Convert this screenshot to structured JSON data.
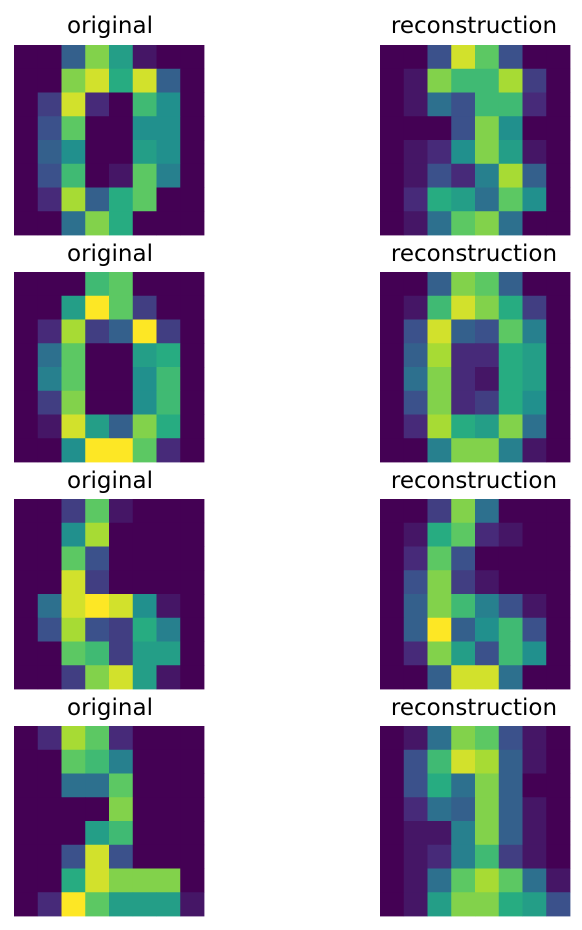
{
  "chart_data": {
    "type": "heatmap",
    "colormap": "viridis",
    "value_range": [
      0,
      16
    ],
    "grid": false,
    "axes_visible": false,
    "rows": [
      {
        "original": {
          "title": "original",
          "values": [
            [
              0,
              0,
              5,
              13,
              9,
              1,
              0,
              0
            ],
            [
              0,
              0,
              13,
              15,
              10,
              15,
              5,
              0
            ],
            [
              0,
              3,
              15,
              2,
              0,
              11,
              8,
              0
            ],
            [
              0,
              4,
              12,
              0,
              0,
              8,
              8,
              0
            ],
            [
              0,
              5,
              8,
              0,
              0,
              9,
              8,
              0
            ],
            [
              0,
              4,
              11,
              0,
              1,
              12,
              7,
              0
            ],
            [
              0,
              2,
              14,
              5,
              10,
              12,
              0,
              0
            ],
            [
              0,
              0,
              6,
              13,
              10,
              0,
              0,
              0
            ]
          ]
        },
        "reconstruction": {
          "title": "reconstruction",
          "values": [
            [
              0,
              0,
              4,
              15,
              12,
              4,
              0,
              0
            ],
            [
              0,
              1,
              13,
              11,
              11,
              14,
              3,
              0
            ],
            [
              0,
              1,
              6,
              4,
              11,
              11,
              2,
              0
            ],
            [
              0,
              0,
              0,
              4,
              13,
              8,
              0,
              0
            ],
            [
              0,
              1,
              2,
              8,
              13,
              9,
              1,
              0
            ],
            [
              0,
              1,
              4,
              2,
              7,
              14,
              5,
              0
            ],
            [
              0,
              2,
              10,
              9,
              6,
              12,
              8,
              0
            ],
            [
              0,
              1,
              6,
              12,
              13,
              6,
              0,
              0
            ]
          ]
        }
      },
      {
        "original": {
          "title": "original",
          "values": [
            [
              0,
              0,
              0,
              11,
              12,
              0,
              0,
              0
            ],
            [
              0,
              0,
              9,
              16,
              12,
              3,
              0,
              0
            ],
            [
              0,
              2,
              14,
              3,
              5,
              16,
              3,
              0
            ],
            [
              0,
              6,
              12,
              0,
              0,
              9,
              10,
              0
            ],
            [
              0,
              7,
              12,
              0,
              0,
              8,
              11,
              0
            ],
            [
              0,
              3,
              13,
              0,
              0,
              8,
              11,
              0
            ],
            [
              0,
              1,
              15,
              9,
              5,
              13,
              10,
              0
            ],
            [
              0,
              0,
              8,
              16,
              16,
              12,
              2,
              0
            ]
          ]
        },
        "reconstruction": {
          "title": "reconstruction",
          "values": [
            [
              0,
              0,
              5,
              13,
              12,
              5,
              0,
              0
            ],
            [
              0,
              1,
              11,
              15,
              13,
              10,
              3,
              0
            ],
            [
              0,
              4,
              15,
              5,
              4,
              12,
              7,
              0
            ],
            [
              0,
              5,
              14,
              2,
              2,
              10,
              9,
              0
            ],
            [
              0,
              6,
              13,
              2,
              1,
              10,
              9,
              0
            ],
            [
              0,
              4,
              13,
              2,
              3,
              10,
              8,
              0
            ],
            [
              0,
              2,
              14,
              10,
              9,
              13,
              6,
              0
            ],
            [
              0,
              0,
              7,
              13,
              13,
              7,
              1,
              0
            ]
          ]
        }
      },
      {
        "original": {
          "title": "original",
          "values": [
            [
              0,
              0,
              3,
              12,
              1,
              0,
              0,
              0
            ],
            [
              0,
              0,
              8,
              14,
              0,
              0,
              0,
              0
            ],
            [
              0,
              0,
              12,
              4,
              0,
              0,
              0,
              0
            ],
            [
              0,
              0,
              15,
              3,
              0,
              0,
              0,
              0
            ],
            [
              0,
              6,
              15,
              16,
              15,
              8,
              1,
              0
            ],
            [
              0,
              4,
              14,
              4,
              3,
              10,
              7,
              0
            ],
            [
              0,
              0,
              12,
              11,
              3,
              9,
              9,
              0
            ],
            [
              0,
              0,
              3,
              13,
              15,
              9,
              1,
              0
            ]
          ]
        },
        "reconstruction": {
          "title": "reconstruction",
          "values": [
            [
              0,
              0,
              3,
              13,
              6,
              0,
              0,
              0
            ],
            [
              0,
              1,
              10,
              12,
              2,
              1,
              0,
              0
            ],
            [
              0,
              2,
              12,
              4,
              0,
              0,
              0,
              0
            ],
            [
              0,
              4,
              13,
              3,
              1,
              0,
              0,
              0
            ],
            [
              0,
              5,
              13,
              11,
              7,
              4,
              1,
              0
            ],
            [
              0,
              5,
              16,
              5,
              8,
              11,
              4,
              0
            ],
            [
              0,
              2,
              13,
              9,
              4,
              11,
              8,
              0
            ],
            [
              0,
              0,
              5,
              15,
              15,
              6,
              0,
              0
            ]
          ]
        }
      },
      {
        "original": {
          "title": "original",
          "values": [
            [
              0,
              2,
              14,
              12,
              2,
              0,
              0,
              0
            ],
            [
              0,
              0,
              12,
              11,
              7,
              0,
              0,
              0
            ],
            [
              0,
              0,
              6,
              6,
              12,
              0,
              0,
              0
            ],
            [
              0,
              0,
              0,
              0,
              13,
              0,
              0,
              0
            ],
            [
              0,
              0,
              0,
              9,
              11,
              0,
              0,
              0
            ],
            [
              0,
              0,
              4,
              15,
              4,
              0,
              0,
              0
            ],
            [
              0,
              0,
              10,
              15,
              13,
              13,
              13,
              0
            ],
            [
              0,
              2,
              16,
              12,
              9,
              9,
              9,
              1
            ]
          ]
        },
        "reconstruction": {
          "title": "reconstruction",
          "values": [
            [
              0,
              1,
              6,
              13,
              12,
              4,
              1,
              0
            ],
            [
              0,
              4,
              11,
              15,
              14,
              5,
              1,
              0
            ],
            [
              0,
              4,
              10,
              6,
              13,
              5,
              0,
              0
            ],
            [
              0,
              2,
              6,
              5,
              13,
              5,
              1,
              0
            ],
            [
              0,
              1,
              1,
              7,
              13,
              5,
              1,
              0
            ],
            [
              0,
              1,
              2,
              7,
              11,
              3,
              1,
              0
            ],
            [
              0,
              1,
              6,
              12,
              14,
              12,
              6,
              1
            ],
            [
              0,
              1,
              9,
              13,
              13,
              10,
              9,
              4
            ]
          ]
        }
      }
    ]
  }
}
